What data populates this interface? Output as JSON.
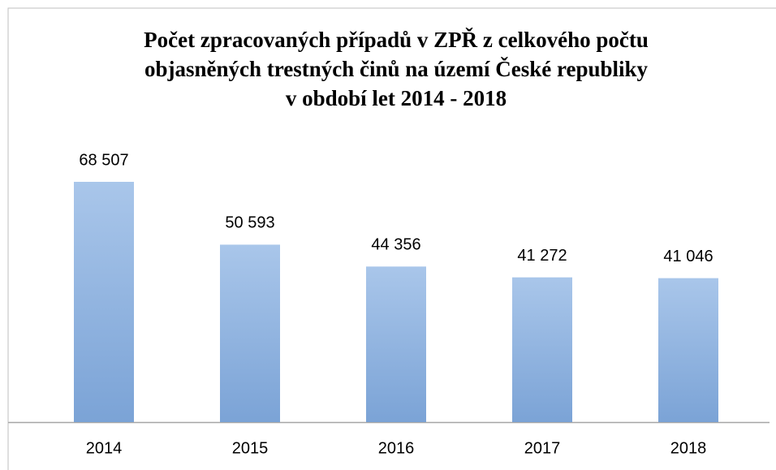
{
  "chart_data": {
    "type": "bar",
    "title": [
      "Počet zpracovaných případů v ZPŘ z celkového počtu",
      "objasněných trestných činů na území České republiky",
      "v období let 2014 - 2018"
    ],
    "categories": [
      "2014",
      "2015",
      "2016",
      "2017",
      "2018"
    ],
    "values": [
      68507,
      50593,
      44356,
      41272,
      41046
    ],
    "value_labels": [
      "68 507",
      "50 593",
      "44 356",
      "41 272",
      "41 046"
    ],
    "color": "#95b7e2"
  }
}
